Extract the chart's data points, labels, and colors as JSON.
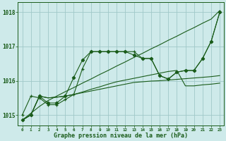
{
  "title": "Graphe pression niveau de la mer (hPa)",
  "hours": [
    0,
    1,
    2,
    3,
    4,
    5,
    6,
    7,
    8,
    9,
    10,
    11,
    12,
    13,
    14,
    15,
    16,
    17,
    18,
    19,
    20,
    21,
    22,
    23
  ],
  "ylim": [
    1014.7,
    1018.3
  ],
  "yticks": [
    1015,
    1016,
    1017,
    1018
  ],
  "bg_color": "#ceeaea",
  "grid_color": "#a0c8c8",
  "line_color": "#1a5c1a",
  "line1_straight": [
    1014.85,
    1015.05,
    1015.25,
    1015.42,
    1015.55,
    1015.68,
    1015.8,
    1015.93,
    1016.05,
    1016.18,
    1016.3,
    1016.43,
    1016.55,
    1016.68,
    1016.8,
    1016.93,
    1017.05,
    1017.18,
    1017.3,
    1017.43,
    1017.55,
    1017.68,
    1017.8,
    1018.05
  ],
  "line2_diamond": [
    1014.85,
    1015.0,
    1015.55,
    1015.35,
    1015.35,
    1015.55,
    1016.1,
    1016.6,
    1016.85,
    1016.85,
    1016.85,
    1016.85,
    1016.85,
    1016.75,
    1016.65,
    1016.65,
    1016.15,
    1016.05,
    1016.25,
    1016.3,
    1016.3,
    1016.65,
    1017.15,
    1018.0
  ],
  "line3_cross": [
    1015.0,
    1015.55,
    1015.5,
    1015.3,
    1015.3,
    1015.45,
    1015.6,
    1016.35,
    1016.85,
    1016.85,
    1016.85,
    1016.85,
    1016.85,
    1016.85,
    1016.65,
    1016.65,
    1016.15,
    1016.05,
    1016.25,
    1016.3,
    1016.3,
    1016.65,
    1017.15,
    1018.0
  ],
  "line4_flat1": [
    1014.85,
    1015.0,
    1015.55,
    1015.5,
    1015.52,
    1015.55,
    1015.6,
    1015.67,
    1015.75,
    1015.82,
    1015.9,
    1015.97,
    1016.02,
    1016.07,
    1016.12,
    1016.17,
    1016.22,
    1016.27,
    1016.3,
    1015.85,
    1015.85,
    1015.88,
    1015.9,
    1015.93
  ],
  "line5_flat2": [
    1014.85,
    1015.0,
    1015.55,
    1015.5,
    1015.52,
    1015.55,
    1015.6,
    1015.65,
    1015.7,
    1015.75,
    1015.8,
    1015.85,
    1015.9,
    1015.95,
    1015.97,
    1015.99,
    1016.0,
    1016.02,
    1016.04,
    1016.06,
    1016.08,
    1016.1,
    1016.12,
    1016.15
  ]
}
